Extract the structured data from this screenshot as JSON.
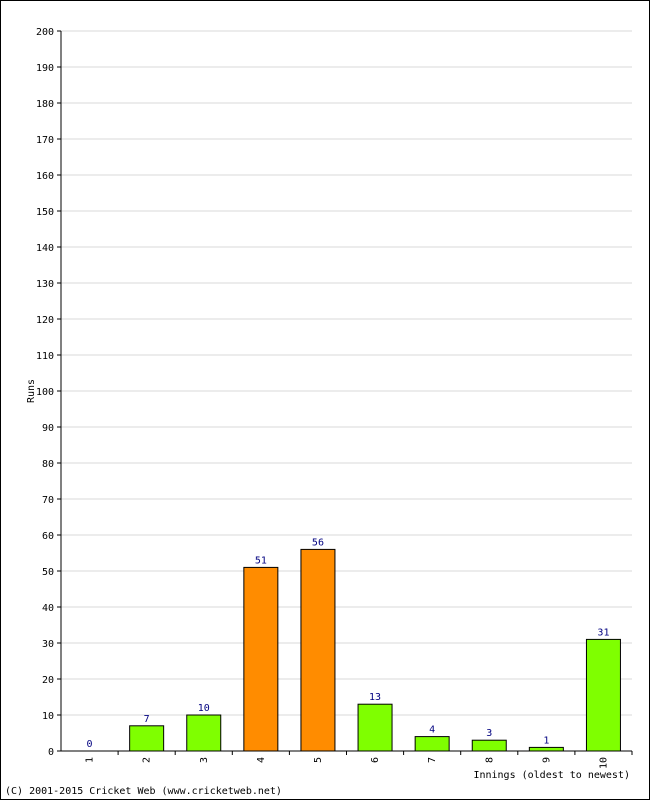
{
  "chart_data": {
    "type": "bar",
    "categories": [
      "1",
      "2",
      "3",
      "4",
      "5",
      "6",
      "7",
      "8",
      "9",
      "10"
    ],
    "values": [
      0,
      7,
      10,
      51,
      56,
      13,
      4,
      3,
      1,
      31
    ],
    "bar_colors": [
      "#7fff00",
      "#7fff00",
      "#7fff00",
      "#ff8c00",
      "#ff8c00",
      "#7fff00",
      "#7fff00",
      "#7fff00",
      "#7fff00",
      "#7fff00"
    ],
    "ylim": [
      0,
      200
    ],
    "ytick_step": 10,
    "ylabel": "Runs",
    "xlabel": "Innings (oldest to newest)",
    "grid": true,
    "value_label_color": "#000080",
    "gridline_color": "#d9d9d9"
  },
  "footer": {
    "copyright": "(C) 2001-2015 Cricket Web (www.cricketweb.net)"
  }
}
